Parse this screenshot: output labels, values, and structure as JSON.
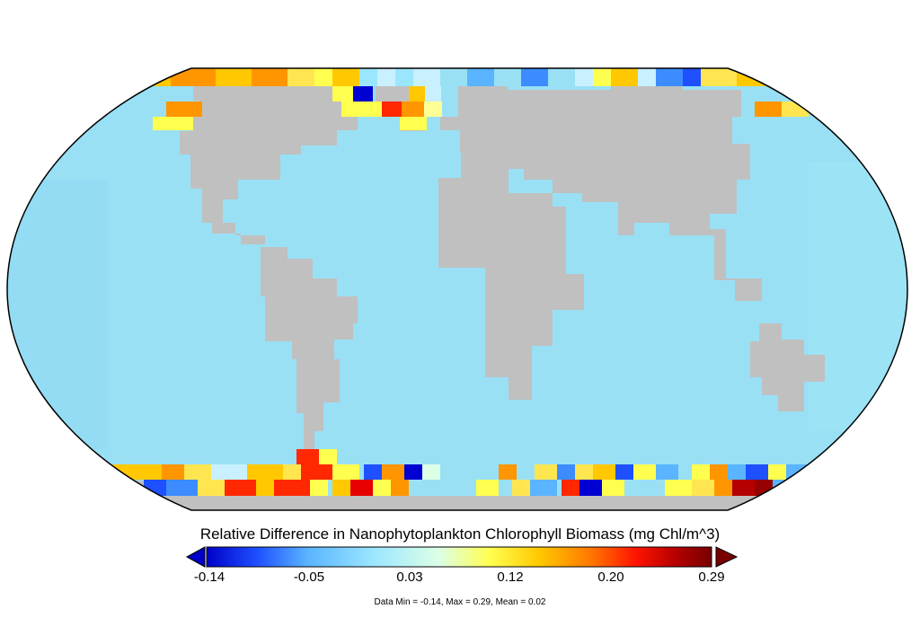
{
  "colorbar": {
    "title": "Relative Difference in Nanophytoplankton Chlorophyll Biomass (mg Chl/m^3)",
    "ticks": [
      "-0.14",
      "-0.05",
      "0.03",
      "0.12",
      "0.20",
      "0.29"
    ],
    "min": -0.14,
    "max": 0.29,
    "colors": [
      "#0000c8",
      "#1e50ff",
      "#5ab4ff",
      "#9be6ff",
      "#dcffe6",
      "#ffff50",
      "#ffc800",
      "#ff7800",
      "#ff1400",
      "#b40000",
      "#780000"
    ]
  },
  "stats": {
    "text": "Data Min = -0.14, Max = 0.29, Mean = 0.02"
  },
  "map": {
    "projection": "robinson",
    "ocean_color": "#99e0f5",
    "land_color": "#c0c0c0"
  }
}
